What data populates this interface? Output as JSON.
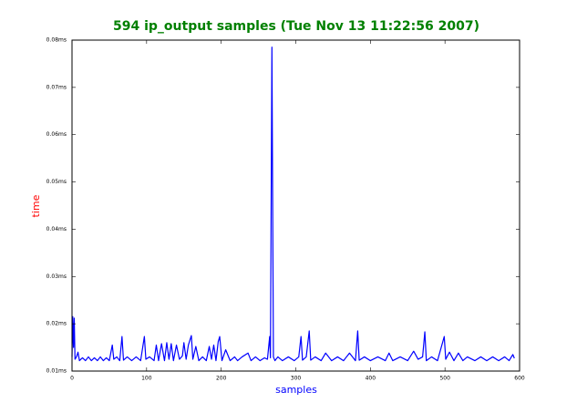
{
  "chart_data": {
    "type": "line",
    "title": "594 ip_output samples (Tue Nov 13 11:22:56 2007)",
    "xlabel": "samples",
    "ylabel": "time",
    "x": [
      0,
      1,
      2,
      3,
      4,
      6,
      8,
      10,
      14,
      18,
      22,
      26,
      30,
      34,
      38,
      42,
      46,
      50,
      54,
      56,
      60,
      64,
      67,
      69,
      74,
      80,
      86,
      92,
      97,
      99,
      104,
      110,
      113,
      116,
      120,
      124,
      127,
      130,
      133,
      136,
      140,
      144,
      148,
      150,
      153,
      156,
      160,
      162,
      166,
      170,
      175,
      180,
      184,
      187,
      190,
      193,
      196,
      198,
      201,
      206,
      212,
      218,
      222,
      228,
      236,
      240,
      246,
      252,
      258,
      262,
      265,
      266,
      268,
      270,
      272,
      276,
      282,
      290,
      298,
      304,
      307,
      309,
      314,
      318,
      320,
      326,
      334,
      340,
      348,
      356,
      364,
      372,
      380,
      383,
      385,
      392,
      400,
      410,
      420,
      425,
      430,
      440,
      450,
      458,
      464,
      470,
      473,
      475,
      482,
      490,
      499,
      501,
      506,
      512,
      518,
      524,
      530,
      540,
      548,
      556,
      564,
      572,
      580,
      586,
      591,
      593
    ],
    "series": [
      {
        "name": "time",
        "color": "#0000ff",
        "values": [
          0.013,
          0.0215,
          0.015,
          0.0212,
          0.0125,
          0.013,
          0.014,
          0.0122,
          0.0128,
          0.0122,
          0.013,
          0.0122,
          0.0128,
          0.0122,
          0.013,
          0.0122,
          0.0128,
          0.0122,
          0.0155,
          0.0125,
          0.013,
          0.0122,
          0.0173,
          0.0123,
          0.013,
          0.0122,
          0.013,
          0.0122,
          0.0173,
          0.0125,
          0.013,
          0.0122,
          0.0155,
          0.0122,
          0.0158,
          0.0122,
          0.016,
          0.0125,
          0.0158,
          0.0122,
          0.0155,
          0.0125,
          0.0132,
          0.016,
          0.0125,
          0.0155,
          0.0175,
          0.0125,
          0.0152,
          0.0122,
          0.013,
          0.0122,
          0.0152,
          0.0125,
          0.0155,
          0.0122,
          0.0162,
          0.0173,
          0.0122,
          0.0145,
          0.0122,
          0.013,
          0.0122,
          0.013,
          0.0138,
          0.0122,
          0.013,
          0.0122,
          0.0128,
          0.0125,
          0.0173,
          0.0128,
          0.0785,
          0.013,
          0.0122,
          0.013,
          0.0122,
          0.013,
          0.0122,
          0.013,
          0.0173,
          0.0123,
          0.013,
          0.0185,
          0.0123,
          0.013,
          0.0122,
          0.0138,
          0.0122,
          0.013,
          0.0122,
          0.0138,
          0.0122,
          0.0185,
          0.0123,
          0.013,
          0.0122,
          0.013,
          0.0122,
          0.0138,
          0.0122,
          0.013,
          0.0122,
          0.0142,
          0.0125,
          0.013,
          0.0183,
          0.0122,
          0.013,
          0.0122,
          0.0173,
          0.0125,
          0.014,
          0.0122,
          0.0138,
          0.0122,
          0.013,
          0.0122,
          0.013,
          0.0122,
          0.013,
          0.0122,
          0.013,
          0.0122,
          0.0135,
          0.0127
        ]
      }
    ],
    "xlim": [
      0,
      600
    ],
    "xticks": [
      0,
      100,
      200,
      300,
      400,
      500,
      600
    ],
    "ylim": [
      0.01,
      0.08
    ],
    "yticks": [
      {
        "value": 0.01,
        "label": "0.01ms"
      },
      {
        "value": 0.02,
        "label": "0.02ms"
      },
      {
        "value": 0.03,
        "label": "0.03ms"
      },
      {
        "value": 0.04,
        "label": "0.04ms"
      },
      {
        "value": 0.05,
        "label": "0.05ms"
      },
      {
        "value": 0.06,
        "label": "0.06ms"
      },
      {
        "value": 0.07,
        "label": "0.07ms"
      },
      {
        "value": 0.08,
        "label": "0.08ms"
      }
    ],
    "title_color": "#008000",
    "xlabel_color": "#0000ff",
    "ylabel_color": "#ff0000"
  }
}
